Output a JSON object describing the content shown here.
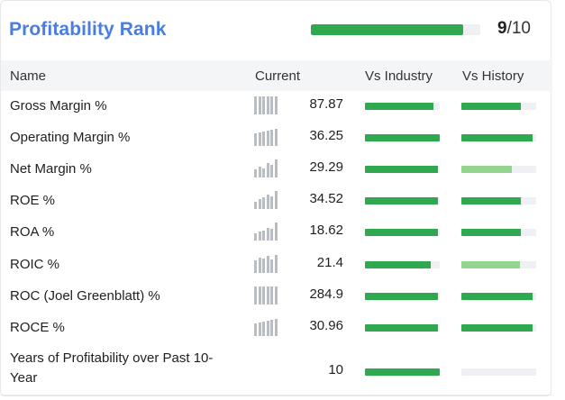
{
  "header": {
    "title": "Profitability Rank",
    "rank": 9,
    "rank_value": "9",
    "rank_denominator": "/10",
    "rank_fraction": 0.9
  },
  "columns": {
    "name": "Name",
    "current": "Current",
    "vs_industry": "Vs Industry",
    "vs_history": "Vs History"
  },
  "rows": [
    {
      "name": "Gross Margin %",
      "value": "87.87",
      "industry": 0.92,
      "history": 0.8,
      "history_light": false,
      "spark": [
        1,
        1,
        1,
        1,
        1,
        1
      ]
    },
    {
      "name": "Operating Margin %",
      "value": "36.25",
      "industry": 1.0,
      "history": 0.95,
      "history_light": false,
      "spark": [
        0.7,
        0.75,
        0.8,
        0.85,
        0.9,
        0.95
      ]
    },
    {
      "name": "Net Margin %",
      "value": "29.29",
      "industry": 0.97,
      "history": 0.68,
      "history_light": true,
      "spark": [
        0.45,
        0.6,
        0.5,
        0.8,
        0.7,
        1
      ]
    },
    {
      "name": "ROE %",
      "value": "34.52",
      "industry": 0.97,
      "history": 0.8,
      "history_light": false,
      "spark": [
        0.4,
        0.55,
        0.65,
        0.8,
        0.7,
        1
      ]
    },
    {
      "name": "ROA %",
      "value": "18.62",
      "industry": 0.97,
      "history": 0.8,
      "history_light": false,
      "spark": [
        0.4,
        0.5,
        0.55,
        0.7,
        0.65,
        1
      ]
    },
    {
      "name": "ROIC %",
      "value": "21.4",
      "industry": 0.88,
      "history": 0.78,
      "history_light": true,
      "spark": [
        0.7,
        0.85,
        0.8,
        0.95,
        0.75,
        1
      ]
    },
    {
      "name": "ROC (Joel Greenblatt) %",
      "value": "284.9",
      "industry": 0.97,
      "history": 0.95,
      "history_light": false,
      "spark": [
        1,
        1,
        1,
        1,
        1,
        1
      ]
    },
    {
      "name": "ROCE %",
      "value": "30.96",
      "industry": 0.97,
      "history": 0.95,
      "history_light": false,
      "spark": [
        0.7,
        0.75,
        0.8,
        0.85,
        0.9,
        0.95
      ]
    },
    {
      "name": "Years of Profitability over Past 10-Year",
      "value": "10",
      "industry": 1.0,
      "history": 0.0,
      "history_light": false,
      "spark": []
    }
  ],
  "colors": {
    "accent": "#4a7de0",
    "bar_green": "#2fa84f",
    "bar_light_green": "#93d48f",
    "track": "#eef0f3"
  },
  "icons": {
    "sparkline": "mini-bar-chart-icon"
  }
}
